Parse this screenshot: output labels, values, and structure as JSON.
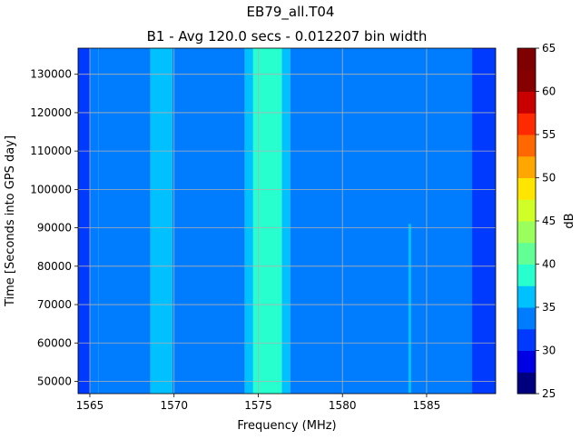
{
  "chart_data": {
    "type": "heatmap",
    "title": "EB79_all.T04",
    "subtitle": "B1 - Avg 120.0 secs - 0.012207 bin width",
    "xlabel": "Frequency (MHz)",
    "ylabel": "Time [Seconds into GPS day]",
    "colorbar_label": "dB",
    "xlim": [
      1564.3,
      1589.1
    ],
    "ylim": [
      46800,
      136800
    ],
    "x_ticks": [
      "1565",
      "1570",
      "1575",
      "1580",
      "1585"
    ],
    "y_ticks": [
      "50000",
      "60000",
      "70000",
      "80000",
      "90000",
      "100000",
      "110000",
      "120000",
      "130000"
    ],
    "grid": true,
    "colorbar": {
      "min": 25,
      "max": 65,
      "step": 2.5,
      "ticks": [
        "25",
        "30",
        "35",
        "40",
        "45",
        "50",
        "55",
        "60",
        "65"
      ],
      "colors": [
        "#00007f",
        "#0000e5",
        "#0039ff",
        "#007dff",
        "#00c1ff",
        "#28ffce",
        "#62ff94",
        "#9aff5d",
        "#d0ff27",
        "#ffe500",
        "#ffa700",
        "#ff6800",
        "#ff2a00",
        "#c80000",
        "#870000",
        "#7f0000"
      ]
    },
    "bands": [
      {
        "x0": 1564.3,
        "x1": 1565.0,
        "level": 31.5
      },
      {
        "x0": 1565.0,
        "x1": 1565.5,
        "level": 33.0
      },
      {
        "x0": 1565.5,
        "x1": 1568.6,
        "level": 33.5
      },
      {
        "x0": 1568.6,
        "x1": 1569.9,
        "level": 36.0
      },
      {
        "x0": 1569.9,
        "x1": 1574.2,
        "level": 33.5
      },
      {
        "x0": 1574.2,
        "x1": 1574.7,
        "level": 36.0
      },
      {
        "x0": 1574.7,
        "x1": 1576.4,
        "level": 39.0
      },
      {
        "x0": 1576.4,
        "x1": 1576.9,
        "level": 36.0
      },
      {
        "x0": 1576.9,
        "x1": 1587.7,
        "level": 33.5
      },
      {
        "x0": 1587.7,
        "x1": 1589.1,
        "level": 31.5
      }
    ],
    "spur": {
      "x": 1584.0,
      "y0": 47000,
      "y1": 91000,
      "level": 36.0
    }
  }
}
